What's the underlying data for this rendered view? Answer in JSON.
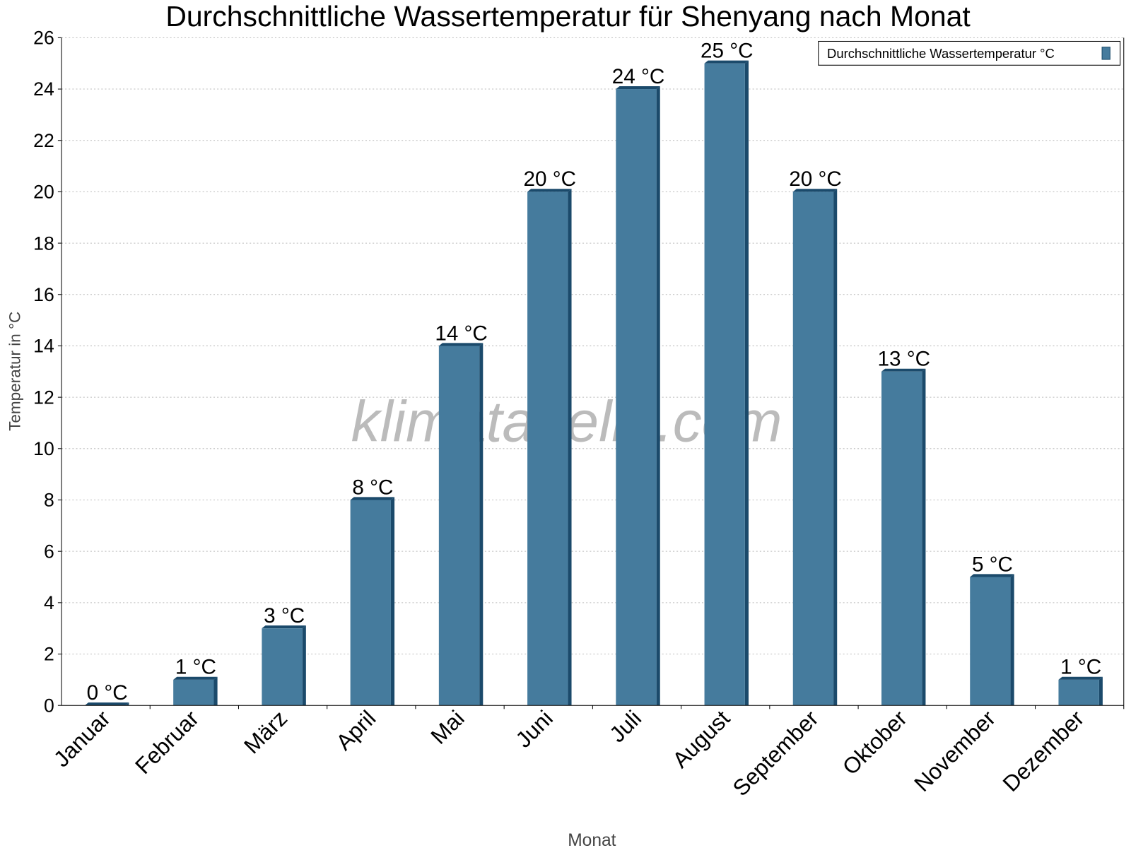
{
  "chart_data": {
    "type": "bar",
    "title": "Durchschnittliche Wassertemperatur für Shenyang nach Monat",
    "xlabel": "Monat",
    "ylabel": "Temperatur in °C",
    "categories": [
      "Januar",
      "Februar",
      "März",
      "April",
      "Mai",
      "Juni",
      "Juli",
      "August",
      "September",
      "Oktober",
      "November",
      "Dezember"
    ],
    "series": [
      {
        "name": "Durchschnittliche Wassertemperatur °C",
        "values": [
          0,
          1,
          3,
          8,
          14,
          20,
          24,
          25,
          20,
          13,
          5,
          1
        ],
        "color": "#457b9d",
        "dark_color": "#1b4a6b"
      }
    ],
    "data_labels": [
      "0 °C",
      "1 °C",
      "3 °C",
      "8 °C",
      "14 °C",
      "20 °C",
      "24 °C",
      "25 °C",
      "20 °C",
      "13 °C",
      "5 °C",
      "1 °C"
    ],
    "ylim": [
      0,
      26
    ],
    "yticks": [
      0,
      2,
      4,
      6,
      8,
      10,
      12,
      14,
      16,
      18,
      20,
      22,
      24,
      26
    ],
    "grid": true,
    "legend_position": "top-right",
    "watermark": "klimatabelle.com"
  }
}
